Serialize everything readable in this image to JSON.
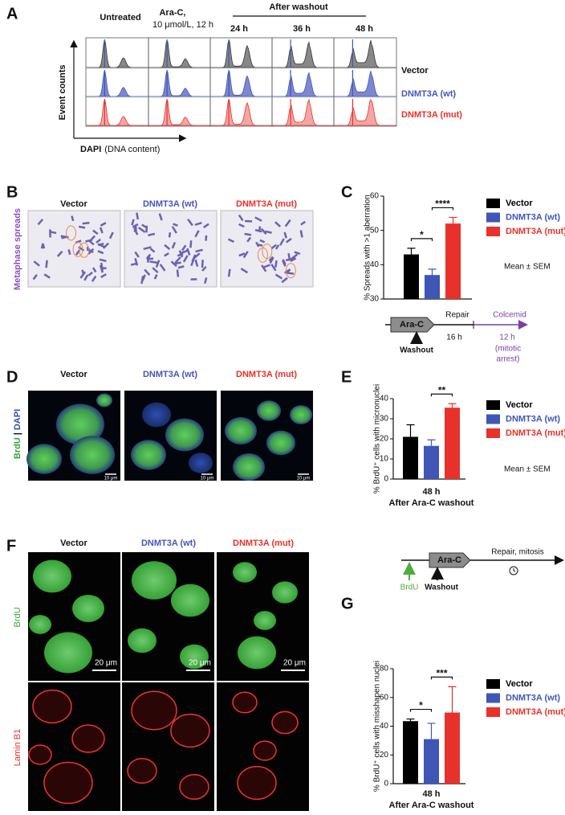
{
  "figure": {
    "A": {
      "letter": "A",
      "untreated": "Untreated",
      "arac": "Ara-C,",
      "arac_dose": "10 μmol/L, 12 h",
      "washout": "After washout",
      "times": [
        "24 h",
        "36 h",
        "48 h"
      ],
      "rows": [
        "Vector",
        "DNMT3A (wt)",
        "DNMT3A (mut)"
      ],
      "y_label": "Event counts",
      "x_label": "DAPI",
      "x_label_unit": "(DNA content)"
    },
    "B": {
      "letter": "B",
      "columns": [
        "Vector",
        "DNMT3A (wt)",
        "DNMT3A (mut)"
      ],
      "side_label": "Metaphase spreads"
    },
    "C": {
      "letter": "C",
      "schematic": {
        "drug": "Ara-C",
        "washout": "Washout",
        "repair": "Repair",
        "repair_time": "16 h",
        "colcemid": "Colcemid",
        "colcemid_time": "12 h",
        "colcemid_note": [
          "(mitotic",
          "arrest)"
        ]
      }
    },
    "D": {
      "letter": "D",
      "columns": [
        "Vector",
        "DNMT3A (wt)",
        "DNMT3A (mut)"
      ],
      "side_label": [
        "BrdU",
        "|",
        "DAPI"
      ],
      "scale_bar": "10 μm"
    },
    "E": {
      "letter": "E"
    },
    "F": {
      "letter": "F",
      "columns": [
        "Vector",
        "DNMT3A (wt)",
        "DNMT3A (mut)"
      ],
      "row_labels": [
        "BrdU",
        "Lamin B1"
      ],
      "scale_bar": "20 μm",
      "schematic": {
        "label": "BrdU",
        "drug": "Ara-C",
        "washout": "Washout",
        "repair": "Repair, mitosis"
      }
    },
    "G": {
      "letter": "G"
    }
  },
  "chart_data": [
    {
      "type": "bar",
      "y_label": "% Spreads with >1 aberration",
      "ylim": [
        30,
        60
      ],
      "yticks": [
        30,
        40,
        50,
        60
      ],
      "series": [
        {
          "name": "Vector",
          "color": "#000000",
          "values": [
            43
          ],
          "errors": [
            1.8
          ]
        },
        {
          "name": "DNMT3A (wt)",
          "color": "#3f56b5",
          "values": [
            37
          ],
          "errors": [
            1.7
          ]
        },
        {
          "name": "DNMT3A (mut)",
          "color": "#e8312a",
          "values": [
            52
          ],
          "errors": [
            1.8
          ]
        }
      ],
      "significance": [
        {
          "between": [
            0,
            1
          ],
          "label": "*"
        },
        {
          "between": [
            1,
            2
          ],
          "label": "****"
        }
      ],
      "note": "Mean ± SEM"
    },
    {
      "type": "bar",
      "y_label": "% BrdU⁺ cells with micronuclei",
      "ylim": [
        0,
        40
      ],
      "yticks": [
        0,
        10,
        20,
        30,
        40
      ],
      "categories": [
        "48 h"
      ],
      "x_label": "After Ara-C washout",
      "series": [
        {
          "name": "Vector",
          "color": "#000000",
          "values": [
            21
          ],
          "errors": [
            6
          ]
        },
        {
          "name": "DNMT3A (wt)",
          "color": "#3f56b5",
          "values": [
            16.5
          ],
          "errors": [
            3
          ]
        },
        {
          "name": "DNMT3A (mut)",
          "color": "#e8312a",
          "values": [
            35.5
          ],
          "errors": [
            2
          ]
        }
      ],
      "significance": [
        {
          "between": [
            1,
            2
          ],
          "label": "**"
        }
      ],
      "note": "Mean ± SEM"
    },
    {
      "type": "bar",
      "y_label": "% BrdU⁺ cells with misshapen nuclei",
      "ylim": [
        0,
        80
      ],
      "yticks": [
        0,
        20,
        40,
        60,
        80
      ],
      "categories": [
        "48 h"
      ],
      "x_label": "After Ara-C washout",
      "series": [
        {
          "name": "Vector",
          "color": "#000000",
          "values": [
            43.5
          ],
          "errors": [
            1.5
          ]
        },
        {
          "name": "DNMT3A (wt)",
          "color": "#3f56b5",
          "values": [
            31
          ],
          "errors": [
            11
          ]
        },
        {
          "name": "DNMT3A (mut)",
          "color": "#e8312a",
          "values": [
            49.5
          ],
          "errors": [
            18
          ]
        }
      ],
      "significance": [
        {
          "between": [
            0,
            1
          ],
          "label": "*"
        },
        {
          "between": [
            1,
            2
          ],
          "label": "***"
        }
      ]
    }
  ]
}
